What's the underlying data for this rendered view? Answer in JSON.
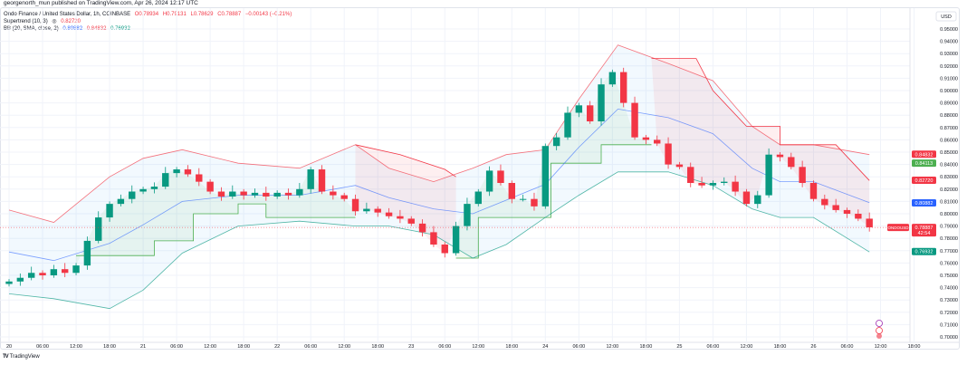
{
  "header": {
    "published": "georgenorth_mun published on TradingView.com, Apr 26, 2024 12:17 UTC",
    "symbol_line": "Ondo Finance / United States Dollar, 1h, COINBASE",
    "ohlc": {
      "open": "O0.78934",
      "high": "H0.79131",
      "low": "L0.78629",
      "close": "C0.78887",
      "change": "−0.00143 (−0.21%)"
    },
    "supertrend": {
      "label": "Supertrend (10, 3)",
      "icon": "eye-icon",
      "value": "0.82720"
    },
    "bb": {
      "label": "BB (20, SMA, close, 2)",
      "basis": "0.80882",
      "upper": "0.84832",
      "lower": "0.76932"
    }
  },
  "footer": {
    "logo": "TradingView"
  },
  "colors": {
    "up": "#089981",
    "down": "#f23645",
    "basis": "#2962ff",
    "upper": "#f23645",
    "lower": "#089981"
  },
  "chart_data": {
    "type": "candlestick",
    "title": "Ondo Finance / United States Dollar, 1h, COINBASE",
    "currency": "USD",
    "ylim": [
      0.7,
      0.95
    ],
    "y_ticks": [
      "0.95000",
      "0.94000",
      "0.93000",
      "0.92000",
      "0.91000",
      "0.90000",
      "0.89000",
      "0.88000",
      "0.87000",
      "0.86000",
      "0.85000",
      "0.84000",
      "0.83000",
      "0.82000",
      "0.81000",
      "0.80000",
      "0.79000",
      "0.78000",
      "0.77000",
      "0.76000",
      "0.75000",
      "0.74000",
      "0.73000",
      "0.72000",
      "0.71000",
      "0.70000"
    ],
    "x_ticks": [
      "20",
      "06:00",
      "12:00",
      "18:00",
      "21",
      "06:00",
      "12:00",
      "18:00",
      "22",
      "06:00",
      "12:00",
      "18:00",
      "23",
      "06:00",
      "12:00",
      "18:00",
      "24",
      "06:00",
      "12:00",
      "18:00",
      "25",
      "06:00",
      "12:00",
      "18:00",
      "26",
      "06:00",
      "12:00",
      "18:00"
    ],
    "x_tick_step_hours": 6,
    "candle_step_hours": 2,
    "closes": [
      0.745,
      0.748,
      0.752,
      0.75,
      0.755,
      0.752,
      0.758,
      0.778,
      0.797,
      0.808,
      0.812,
      0.818,
      0.82,
      0.822,
      0.833,
      0.836,
      0.832,
      0.826,
      0.818,
      0.814,
      0.818,
      0.815,
      0.817,
      0.814,
      0.817,
      0.815,
      0.82,
      0.836,
      0.818,
      0.815,
      0.812,
      0.802,
      0.804,
      0.801,
      0.798,
      0.796,
      0.792,
      0.785,
      0.775,
      0.768,
      0.79,
      0.808,
      0.818,
      0.835,
      0.825,
      0.812,
      0.812,
      0.806,
      0.855,
      0.862,
      0.882,
      0.888,
      0.875,
      0.905,
      0.915,
      0.89,
      0.862,
      0.86,
      0.857,
      0.84,
      0.838,
      0.825,
      0.823,
      0.825,
      0.826,
      0.818,
      0.808,
      0.815,
      0.848,
      0.846,
      0.838,
      0.825,
      0.812,
      0.807,
      0.803,
      0.8,
      0.796,
      0.789
    ],
    "bb_upper": [
      [
        0,
        0.803
      ],
      [
        8,
        0.793
      ],
      [
        18,
        0.83
      ],
      [
        24,
        0.845
      ],
      [
        31,
        0.852
      ],
      [
        41,
        0.841
      ],
      [
        52,
        0.837
      ],
      [
        62,
        0.856
      ],
      [
        68,
        0.837
      ],
      [
        76,
        0.826
      ],
      [
        83,
        0.837
      ],
      [
        89,
        0.848
      ],
      [
        96,
        0.852
      ],
      [
        102,
        0.893
      ],
      [
        109,
        0.937
      ],
      [
        118,
        0.922
      ],
      [
        126,
        0.908
      ],
      [
        133,
        0.871
      ],
      [
        138,
        0.856
      ],
      [
        144,
        0.856
      ],
      [
        154,
        0.848
      ]
    ],
    "bb_lower": [
      [
        0,
        0.735
      ],
      [
        8,
        0.731
      ],
      [
        18,
        0.723
      ],
      [
        24,
        0.738
      ],
      [
        31,
        0.768
      ],
      [
        41,
        0.79
      ],
      [
        52,
        0.794
      ],
      [
        62,
        0.79
      ],
      [
        68,
        0.79
      ],
      [
        76,
        0.783
      ],
      [
        83,
        0.764
      ],
      [
        89,
        0.775
      ],
      [
        96,
        0.797
      ],
      [
        102,
        0.815
      ],
      [
        109,
        0.834
      ],
      [
        118,
        0.834
      ],
      [
        126,
        0.823
      ],
      [
        133,
        0.804
      ],
      [
        138,
        0.797
      ],
      [
        144,
        0.797
      ],
      [
        154,
        0.769
      ]
    ],
    "bb_basis": [
      [
        0,
        0.769
      ],
      [
        8,
        0.762
      ],
      [
        18,
        0.776
      ],
      [
        24,
        0.791
      ],
      [
        31,
        0.81
      ],
      [
        41,
        0.815
      ],
      [
        52,
        0.815
      ],
      [
        62,
        0.823
      ],
      [
        68,
        0.813
      ],
      [
        76,
        0.804
      ],
      [
        83,
        0.8
      ],
      [
        89,
        0.811
      ],
      [
        96,
        0.824
      ],
      [
        102,
        0.854
      ],
      [
        109,
        0.885
      ],
      [
        118,
        0.878
      ],
      [
        126,
        0.865
      ],
      [
        133,
        0.837
      ],
      [
        138,
        0.826
      ],
      [
        144,
        0.826
      ],
      [
        154,
        0.809
      ]
    ],
    "supertrend": [
      {
        "dir": "up",
        "points": [
          [
            12,
            0.766
          ],
          [
            26,
            0.766
          ],
          [
            26,
            0.778
          ],
          [
            33,
            0.778
          ],
          [
            33,
            0.8
          ],
          [
            41,
            0.8
          ],
          [
            41,
            0.808
          ],
          [
            46,
            0.808
          ],
          [
            46,
            0.797
          ],
          [
            62,
            0.797
          ]
        ]
      },
      {
        "dir": "down",
        "points": [
          [
            62,
            0.856
          ],
          [
            70,
            0.848
          ],
          [
            78,
            0.836
          ],
          [
            80,
            0.83
          ],
          [
            80,
            0.83
          ]
        ]
      },
      {
        "dir": "up",
        "points": [
          [
            80,
            0.764
          ],
          [
            84,
            0.764
          ],
          [
            84,
            0.797
          ],
          [
            97,
            0.797
          ],
          [
            97,
            0.841
          ],
          [
            106,
            0.841
          ],
          [
            106,
            0.856
          ],
          [
            115,
            0.856
          ]
        ]
      },
      {
        "dir": "down",
        "points": [
          [
            115,
            0.926
          ],
          [
            123,
            0.926
          ],
          [
            126,
            0.9
          ],
          [
            132,
            0.871
          ],
          [
            138,
            0.871
          ],
          [
            138,
            0.856
          ],
          [
            148,
            0.856
          ],
          [
            154,
            0.827
          ]
        ]
      }
    ],
    "price_labels": [
      {
        "text": "0.84832",
        "value": 0.84832,
        "color": "#f23645"
      },
      {
        "text": "0.84113",
        "value": 0.84113,
        "color": "#4caf50"
      },
      {
        "text": "0.82720",
        "value": 0.8272,
        "color": "#f23645"
      },
      {
        "text": "0.80882",
        "value": 0.80882,
        "color": "#2962ff"
      },
      {
        "text": "0.78887",
        "sub": "42:54",
        "value": 0.78887,
        "color": "#f23645",
        "tag": "ONDOUSD"
      },
      {
        "text": "0.76932",
        "value": 0.76932,
        "color": "#089981"
      }
    ]
  }
}
